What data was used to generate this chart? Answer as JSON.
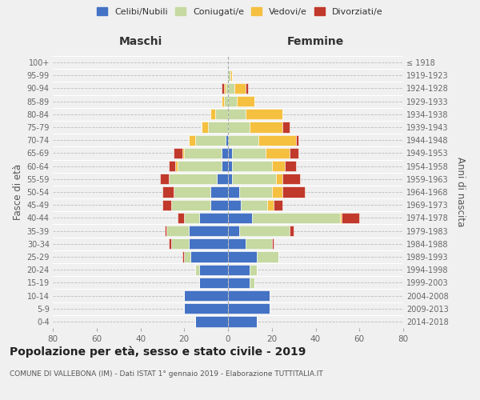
{
  "age_groups": [
    "0-4",
    "5-9",
    "10-14",
    "15-19",
    "20-24",
    "25-29",
    "30-34",
    "35-39",
    "40-44",
    "45-49",
    "50-54",
    "55-59",
    "60-64",
    "65-69",
    "70-74",
    "75-79",
    "80-84",
    "85-89",
    "90-94",
    "95-99",
    "100+"
  ],
  "birth_years": [
    "2014-2018",
    "2009-2013",
    "2004-2008",
    "1999-2003",
    "1994-1998",
    "1989-1993",
    "1984-1988",
    "1979-1983",
    "1974-1978",
    "1969-1973",
    "1964-1968",
    "1959-1963",
    "1954-1958",
    "1949-1953",
    "1944-1948",
    "1939-1943",
    "1934-1938",
    "1929-1933",
    "1924-1928",
    "1919-1923",
    "≤ 1918"
  ],
  "males": {
    "celibi": [
      15,
      20,
      20,
      13,
      13,
      17,
      18,
      18,
      13,
      8,
      8,
      5,
      3,
      3,
      1,
      0,
      0,
      0,
      0,
      0,
      0
    ],
    "coniugati": [
      0,
      0,
      0,
      0,
      2,
      3,
      8,
      10,
      7,
      18,
      17,
      22,
      20,
      17,
      14,
      9,
      6,
      2,
      1,
      0,
      0
    ],
    "vedovi": [
      0,
      0,
      0,
      0,
      0,
      0,
      0,
      0,
      0,
      0,
      0,
      0,
      1,
      1,
      3,
      3,
      2,
      1,
      1,
      0,
      0
    ],
    "divorziati": [
      0,
      0,
      0,
      0,
      0,
      1,
      1,
      1,
      3,
      4,
      5,
      4,
      3,
      4,
      0,
      0,
      0,
      0,
      1,
      0,
      0
    ]
  },
  "females": {
    "nubili": [
      13,
      19,
      19,
      10,
      10,
      13,
      8,
      5,
      11,
      6,
      5,
      2,
      2,
      2,
      0,
      0,
      0,
      0,
      0,
      0,
      0
    ],
    "coniugate": [
      0,
      0,
      0,
      2,
      3,
      10,
      12,
      23,
      40,
      12,
      15,
      20,
      18,
      15,
      14,
      10,
      8,
      4,
      3,
      1,
      0
    ],
    "vedove": [
      0,
      0,
      0,
      0,
      0,
      0,
      0,
      0,
      1,
      3,
      5,
      3,
      6,
      11,
      17,
      15,
      17,
      8,
      5,
      1,
      0
    ],
    "divorziate": [
      0,
      0,
      0,
      0,
      0,
      0,
      1,
      2,
      8,
      4,
      10,
      8,
      5,
      4,
      1,
      3,
      0,
      0,
      1,
      0,
      0
    ]
  },
  "colors": {
    "celibi": "#4472c4",
    "coniugati": "#c5d9a0",
    "vedovi": "#f5c040",
    "divorziati": "#c0392b"
  },
  "title": "Popolazione per età, sesso e stato civile - 2019",
  "subtitle": "COMUNE DI VALLEBONA (IM) - Dati ISTAT 1° gennaio 2019 - Elaborazione TUTTITALIA.IT",
  "xlabel_left": "Maschi",
  "xlabel_right": "Femmine",
  "ylabel_left": "Fasce di età",
  "ylabel_right": "Anni di nascita",
  "xlim": 80,
  "legend_labels": [
    "Celibi/Nubili",
    "Coniugati/e",
    "Vedovi/e",
    "Divorziati/e"
  ],
  "background_color": "#f0f0f0"
}
